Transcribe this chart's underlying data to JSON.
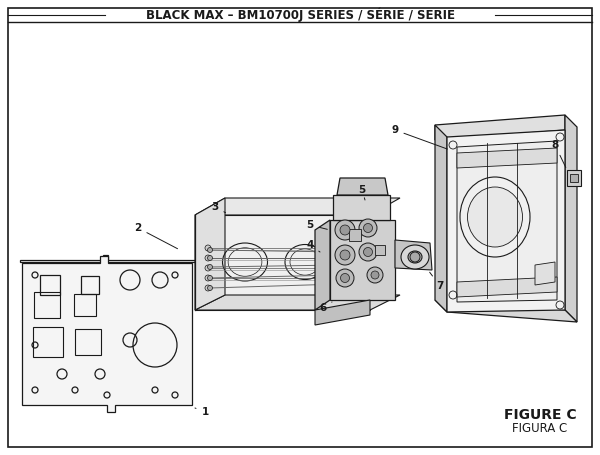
{
  "title": "BLACK MAX – BM10700J SERIES / SÉRIE / SERIE",
  "figure_c_text": "FIGURE C",
  "figura_c_text": "FIGURA C",
  "bg_color": "#ffffff",
  "line_color": "#1a1a1a",
  "lw": 0.9
}
